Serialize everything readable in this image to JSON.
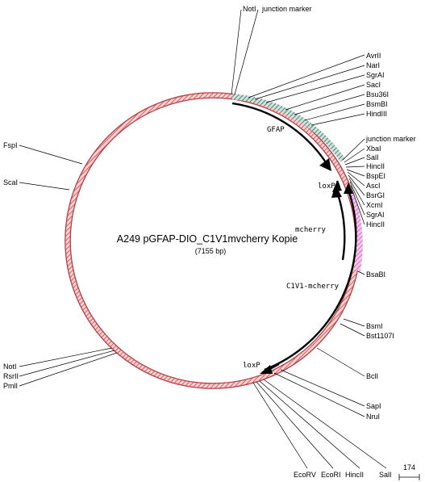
{
  "map": {
    "title": "A249 pGFAP-DIO_C1V1mvcherry Kopie",
    "length_label": "(7155 bp)",
    "scale_label": "174",
    "colors": {
      "backbone": "#c8454a",
      "backbone_fill": "#f3d2d4",
      "gfap_region": "#2f6b5d",
      "insert_region": "#d257c3"
    },
    "enzymes_right_top": [
      "AvrII",
      "NarI",
      "SgrAI",
      "SacI",
      "Bsu36I",
      "BsmBI",
      "HindIII"
    ],
    "enzymes_right_mid": [
      "junction marker",
      "XbaI",
      "SalI",
      "HincII",
      "BspEI",
      "AscI",
      "BsrGI",
      "XcmI",
      "SgrAI",
      "HincII"
    ],
    "enzymes_right_low": [
      "BsaBI",
      "BsmI",
      "Bst1107I",
      "BclI",
      "SapI",
      "NruI"
    ],
    "enzymes_top": [
      "NotI",
      "junction marker"
    ],
    "enzymes_left": [
      "FspI",
      "ScaI"
    ],
    "enzymes_left_low": [
      "NotI",
      "RsrII",
      "PmlI"
    ],
    "enzymes_bottom": [
      "EcoRV",
      "EcoRI",
      "HincII",
      "SalI"
    ],
    "features": [
      "GFAP",
      "loxP",
      "mcherry",
      "C1V1-mcherry",
      "loxP"
    ]
  }
}
